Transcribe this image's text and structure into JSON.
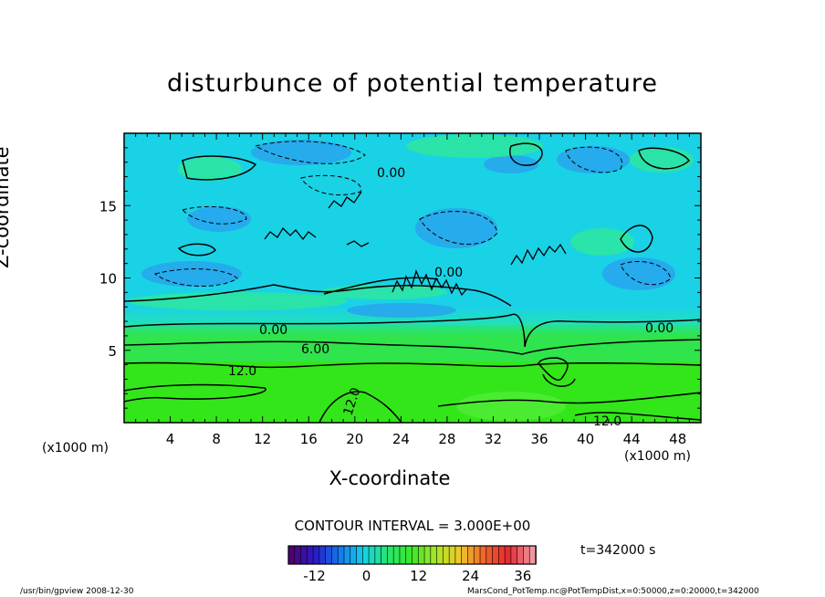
{
  "chart_data": {
    "type": "heatmap",
    "title": "disturbunce of potential temperature",
    "xlabel": "X-coordinate",
    "ylabel": "Z-coordinate",
    "x_unit_left": "(x1000 m)",
    "x_unit_right": "(x1000 m)",
    "xlim": [
      0,
      50
    ],
    "ylim": [
      0,
      20
    ],
    "xticks": [
      4,
      8,
      12,
      16,
      20,
      24,
      28,
      32,
      36,
      40,
      44,
      48
    ],
    "yticks": [
      5,
      10,
      15
    ],
    "contour_interval_text": "CONTOUR INTERVAL = 3.000E+00",
    "contour_labels": [
      "0.00",
      "0.00",
      "0.00",
      "0.00",
      "6.00",
      "12.0",
      "12.0",
      "12.0"
    ],
    "colorbar": {
      "ticks": [
        "-12",
        "0",
        "12",
        "24",
        "36"
      ],
      "range": [
        -18,
        39
      ]
    },
    "time_label": "t=342000 s",
    "colors": {
      "low_layer": "#33e61a",
      "upper_field": "#1ad2e6",
      "cool_patch": "#2a9ef0",
      "warm_patch": "#2ee89a"
    }
  },
  "footer": {
    "left": "/usr/bin/gpview   2008-12-30",
    "right": "MarsCond_PotTemp.nc@PotTempDist,x=0:50000,z=0:20000,t=342000"
  }
}
